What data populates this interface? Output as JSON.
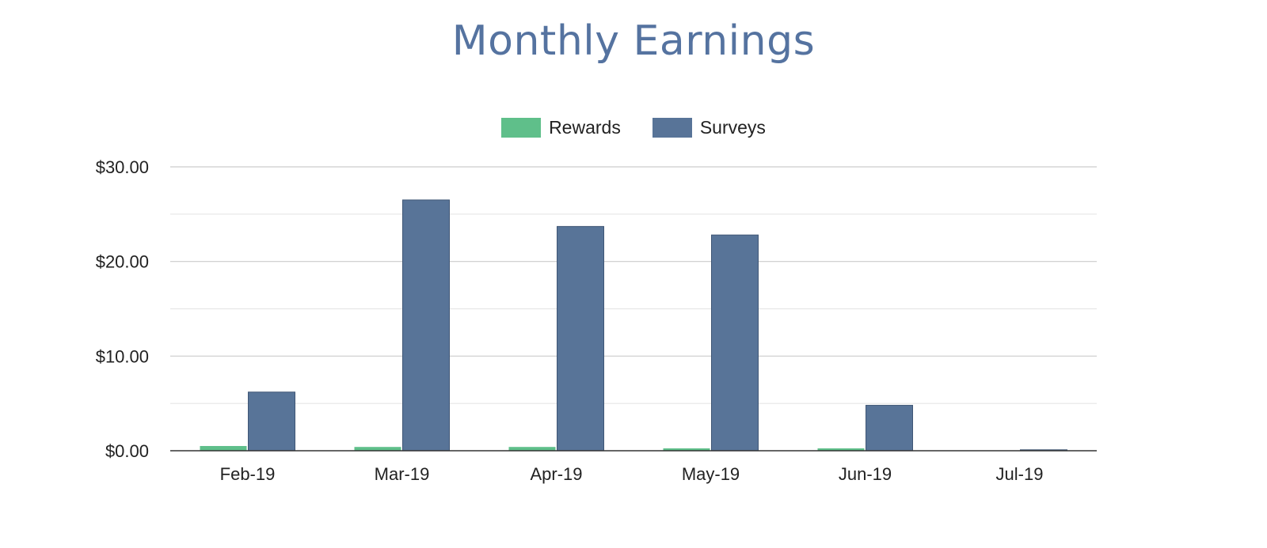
{
  "chart_data": {
    "type": "bar",
    "title": "Monthly Earnings",
    "categories": [
      "Feb-19",
      "Mar-19",
      "Apr-19",
      "May-19",
      "Jun-19",
      "Jul-19"
    ],
    "series": [
      {
        "name": "Rewards",
        "color": "#5fbf8a",
        "values": [
          0.5,
          0.4,
          0.4,
          0.25,
          0.25,
          0.0
        ]
      },
      {
        "name": "Surveys",
        "color": "#587498",
        "values": [
          6.2,
          26.5,
          23.7,
          22.8,
          4.8,
          0.1
        ]
      }
    ],
    "y_ticks": [
      "$0.00",
      "$10.00",
      "$20.00",
      "$30.00"
    ],
    "ylim": [
      0,
      30
    ],
    "legend_position": "top-center",
    "grid": true
  }
}
